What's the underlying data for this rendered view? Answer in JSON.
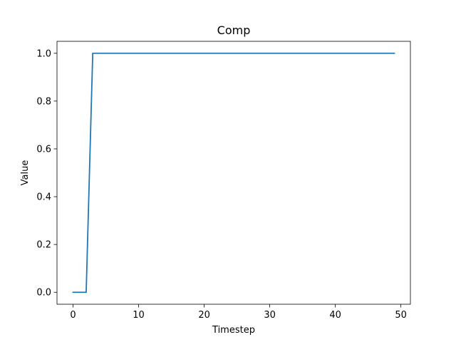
{
  "chart_data": {
    "type": "line",
    "title": "Comp",
    "xlabel": "Timestep",
    "ylabel": "Value",
    "xlim": [
      -2.45,
      51.45
    ],
    "ylim": [
      -0.05,
      1.05
    ],
    "xticks": [
      0,
      10,
      20,
      30,
      40,
      50
    ],
    "yticks": [
      0.0,
      0.2,
      0.4,
      0.6,
      0.8,
      1.0
    ],
    "xtick_labels": [
      "0",
      "10",
      "20",
      "30",
      "40",
      "50"
    ],
    "ytick_labels": [
      "0.0",
      "0.2",
      "0.4",
      "0.6",
      "0.8",
      "1.0"
    ],
    "grid": false,
    "series": [
      {
        "color": "#1f77b4",
        "x": [
          0,
          1,
          2,
          3,
          4,
          5,
          6,
          7,
          8,
          9,
          10,
          11,
          12,
          13,
          14,
          15,
          16,
          17,
          18,
          19,
          20,
          21,
          22,
          23,
          24,
          25,
          26,
          27,
          28,
          29,
          30,
          31,
          32,
          33,
          34,
          35,
          36,
          37,
          38,
          39,
          40,
          41,
          42,
          43,
          44,
          45,
          46,
          47,
          48,
          49
        ],
        "y": [
          0,
          0,
          0,
          1,
          1,
          1,
          1,
          1,
          1,
          1,
          1,
          1,
          1,
          1,
          1,
          1,
          1,
          1,
          1,
          1,
          1,
          1,
          1,
          1,
          1,
          1,
          1,
          1,
          1,
          1,
          1,
          1,
          1,
          1,
          1,
          1,
          1,
          1,
          1,
          1,
          1,
          1,
          1,
          1,
          1,
          1,
          1,
          1,
          1,
          1
        ]
      }
    ]
  }
}
